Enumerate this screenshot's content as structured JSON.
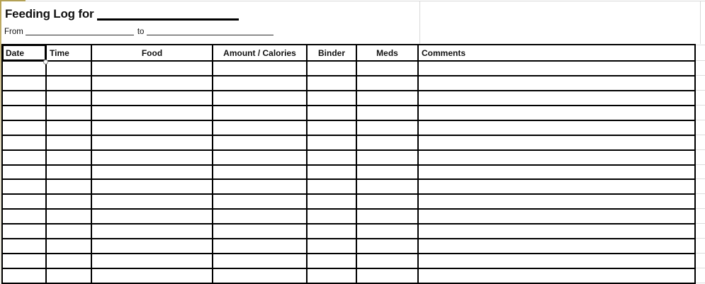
{
  "header": {
    "title": "Feeding Log for",
    "from_label": "From",
    "to_label": "to"
  },
  "table": {
    "columns": [
      {
        "label": "Date",
        "align": "left"
      },
      {
        "label": "Time",
        "align": "left"
      },
      {
        "label": "Food",
        "align": "center"
      },
      {
        "label": "Amount / Calories",
        "align": "center"
      },
      {
        "label": "Binder",
        "align": "center"
      },
      {
        "label": "Meds",
        "align": "center"
      },
      {
        "label": "Comments",
        "align": "left"
      }
    ],
    "empty_row_count": 15,
    "selected_cell": "Date"
  },
  "colors": {
    "table_border": "#000000",
    "gridline": "#d9d9d9",
    "accent_tan": "#b3a156"
  }
}
